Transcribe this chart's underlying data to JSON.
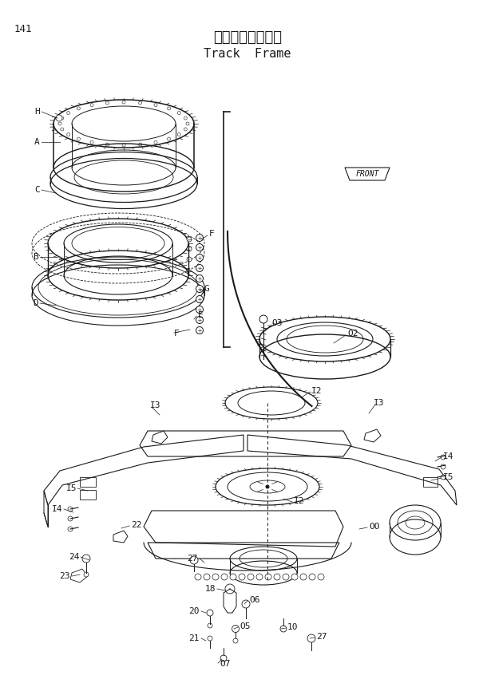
{
  "title_japanese": "トラックフレーム",
  "title_english": "Track  Frame",
  "page_number": "141",
  "bg_color": "#ffffff",
  "line_color": "#1a1a1a",
  "figsize": [
    6.2,
    8.76
  ],
  "dpi": 100
}
